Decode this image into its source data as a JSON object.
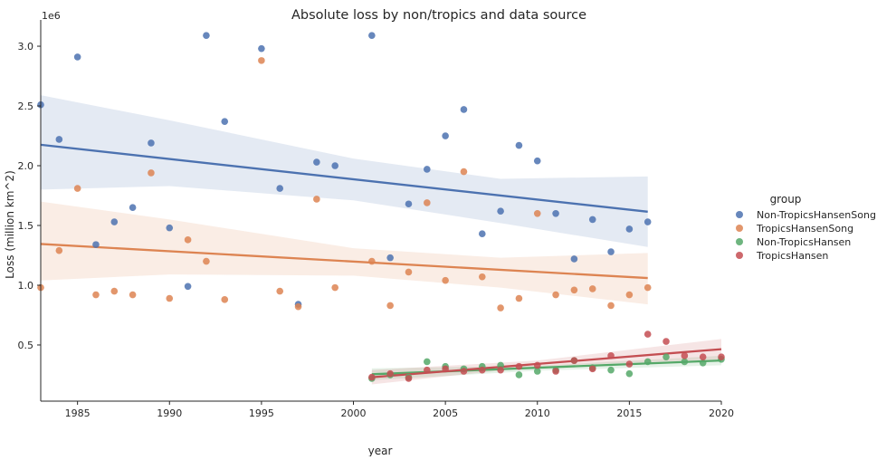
{
  "chart_data": {
    "type": "scatter",
    "title": "Absolute loss by non/tropics and data source",
    "xlabel": "year",
    "ylabel": "Loss (million km^2)",
    "y_offset_text": "1e6",
    "xlim": [
      1983,
      2020
    ],
    "ylim": [
      30000,
      3220000
    ],
    "x_ticks": [
      1985,
      1990,
      1995,
      2000,
      2005,
      2010,
      2015,
      2020
    ],
    "y_ticks": [
      500000,
      1000000,
      1500000,
      2000000,
      2500000,
      3000000
    ],
    "y_tick_labels": [
      "0.5",
      "1.0",
      "1.5",
      "2.0",
      "2.5",
      "3.0"
    ],
    "grid": false,
    "legend_title": "group",
    "legend_position": "right",
    "series": [
      {
        "name": "Non-TropicsHansenSong",
        "color": "#4c72b0",
        "line_color": "#4c72b0",
        "points": [
          [
            1983,
            2510000
          ],
          [
            1984,
            2220000
          ],
          [
            1985,
            2910000
          ],
          [
            1986,
            1340000
          ],
          [
            1987,
            1530000
          ],
          [
            1988,
            1650000
          ],
          [
            1989,
            2190000
          ],
          [
            1990,
            1480000
          ],
          [
            1991,
            990000
          ],
          [
            1992,
            3090000
          ],
          [
            1993,
            2370000
          ],
          [
            1995,
            2980000
          ],
          [
            1996,
            1810000
          ],
          [
            1997,
            840000
          ],
          [
            1998,
            2030000
          ],
          [
            1999,
            2000000
          ],
          [
            2001,
            3090000
          ],
          [
            2002,
            1230000
          ],
          [
            2003,
            1680000
          ],
          [
            2004,
            1970000
          ],
          [
            2005,
            2250000
          ],
          [
            2006,
            2470000
          ],
          [
            2007,
            1430000
          ],
          [
            2008,
            1620000
          ],
          [
            2009,
            2170000
          ],
          [
            2010,
            2040000
          ],
          [
            2011,
            1600000
          ],
          [
            2012,
            1220000
          ],
          [
            2013,
            1550000
          ],
          [
            2014,
            1280000
          ],
          [
            2015,
            1470000
          ],
          [
            2016,
            1530000
          ]
        ],
        "fit": {
          "x": [
            1983,
            2016
          ],
          "y": [
            2175000,
            1615000
          ]
        },
        "band": {
          "x": [
            1983,
            1990,
            2000,
            2008,
            2016
          ],
          "lower": [
            1800000,
            1830000,
            1710000,
            1520000,
            1320000
          ],
          "upper": [
            2590000,
            2380000,
            2060000,
            1890000,
            1910000
          ]
        }
      },
      {
        "name": "TropicsHansenSong",
        "color": "#dd8452",
        "line_color": "#dd8452",
        "points": [
          [
            1983,
            980000
          ],
          [
            1984,
            1290000
          ],
          [
            1985,
            1810000
          ],
          [
            1986,
            920000
          ],
          [
            1987,
            950000
          ],
          [
            1988,
            920000
          ],
          [
            1989,
            1940000
          ],
          [
            1990,
            890000
          ],
          [
            1991,
            1380000
          ],
          [
            1992,
            1200000
          ],
          [
            1993,
            880000
          ],
          [
            1995,
            2880000
          ],
          [
            1996,
            950000
          ],
          [
            1997,
            820000
          ],
          [
            1998,
            1720000
          ],
          [
            1999,
            980000
          ],
          [
            2001,
            1200000
          ],
          [
            2002,
            830000
          ],
          [
            2003,
            1110000
          ],
          [
            2004,
            1690000
          ],
          [
            2005,
            1040000
          ],
          [
            2006,
            1950000
          ],
          [
            2007,
            1070000
          ],
          [
            2008,
            810000
          ],
          [
            2009,
            890000
          ],
          [
            2010,
            1600000
          ],
          [
            2011,
            920000
          ],
          [
            2012,
            960000
          ],
          [
            2013,
            970000
          ],
          [
            2014,
            830000
          ],
          [
            2015,
            920000
          ],
          [
            2016,
            980000
          ]
        ],
        "fit": {
          "x": [
            1983,
            2016
          ],
          "y": [
            1345000,
            1060000
          ]
        },
        "band": {
          "x": [
            1983,
            1990,
            2000,
            2008,
            2016
          ],
          "lower": [
            1040000,
            1090000,
            1080000,
            980000,
            840000
          ],
          "upper": [
            1700000,
            1550000,
            1310000,
            1230000,
            1270000
          ]
        }
      },
      {
        "name": "Non-TropicsHansen",
        "color": "#55a868",
        "line_color": "#55a868",
        "points": [
          [
            2001,
            220000
          ],
          [
            2002,
            250000
          ],
          [
            2003,
            230000
          ],
          [
            2004,
            360000
          ],
          [
            2005,
            320000
          ],
          [
            2006,
            300000
          ],
          [
            2007,
            320000
          ],
          [
            2008,
            330000
          ],
          [
            2009,
            250000
          ],
          [
            2010,
            280000
          ],
          [
            2011,
            290000
          ],
          [
            2012,
            370000
          ],
          [
            2013,
            310000
          ],
          [
            2014,
            290000
          ],
          [
            2015,
            260000
          ],
          [
            2016,
            360000
          ],
          [
            2017,
            400000
          ],
          [
            2018,
            360000
          ],
          [
            2019,
            350000
          ],
          [
            2020,
            380000
          ]
        ],
        "fit": {
          "x": [
            2001,
            2020
          ],
          "y": [
            255000,
            370000
          ]
        },
        "band": {
          "x": [
            2001,
            2010,
            2020
          ],
          "lower": [
            205000,
            285000,
            330000
          ],
          "upper": [
            305000,
            325000,
            410000
          ]
        }
      },
      {
        "name": "TropicsHansen",
        "color": "#c44e52",
        "line_color": "#c44e52",
        "points": [
          [
            2001,
            230000
          ],
          [
            2002,
            260000
          ],
          [
            2003,
            220000
          ],
          [
            2004,
            290000
          ],
          [
            2005,
            300000
          ],
          [
            2006,
            280000
          ],
          [
            2007,
            290000
          ],
          [
            2008,
            290000
          ],
          [
            2009,
            320000
          ],
          [
            2010,
            330000
          ],
          [
            2011,
            280000
          ],
          [
            2012,
            370000
          ],
          [
            2013,
            300000
          ],
          [
            2014,
            410000
          ],
          [
            2015,
            340000
          ],
          [
            2016,
            590000
          ],
          [
            2017,
            530000
          ],
          [
            2018,
            410000
          ],
          [
            2019,
            400000
          ],
          [
            2020,
            400000
          ]
        ],
        "fit": {
          "x": [
            2001,
            2020
          ],
          "y": [
            230000,
            465000
          ]
        },
        "band": {
          "x": [
            2001,
            2010,
            2020
          ],
          "lower": [
            170000,
            320000,
            380000
          ],
          "upper": [
            290000,
            370000,
            550000
          ]
        }
      }
    ]
  }
}
